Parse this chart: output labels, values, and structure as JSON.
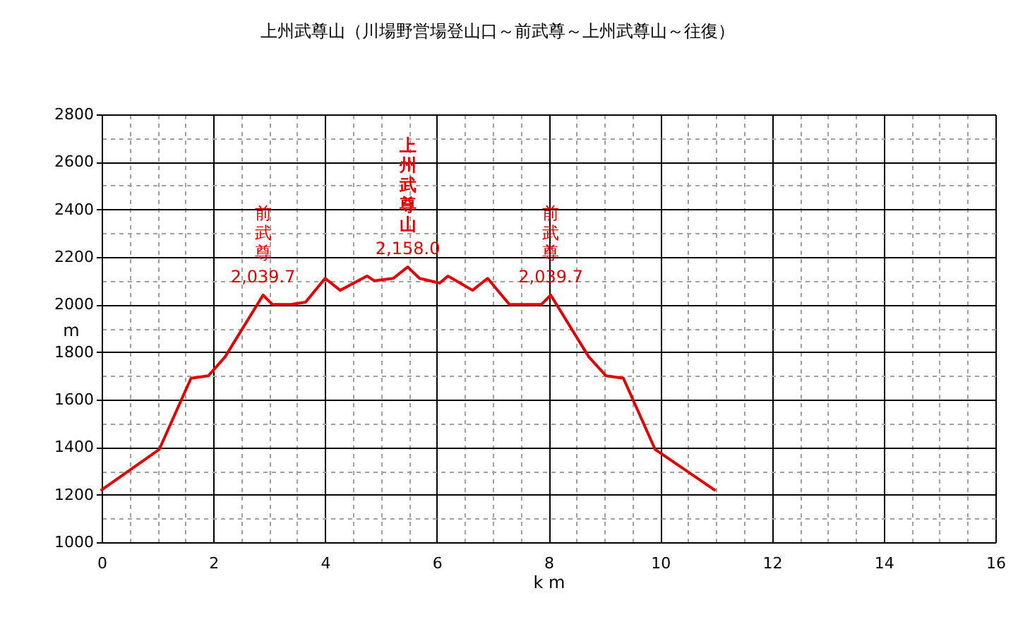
{
  "chart_data": {
    "type": "line",
    "title": "上州武尊山（川場野営場登山口～前武尊～上州武尊山～往復）",
    "xlabel": "k m",
    "ylabel": "m",
    "x": [
      0,
      1.03,
      1.6,
      1.91,
      2.21,
      2.89,
      3.06,
      3.39,
      3.65,
      4.0,
      4.27,
      4.75,
      4.88,
      5.22,
      5.48,
      5.69,
      6.05,
      6.2,
      6.64,
      6.91,
      7.3,
      7.57,
      7.87,
      8.04,
      8.72,
      9.03,
      9.34,
      9.91,
      10.97
    ],
    "values": [
      1220,
      1390,
      1690,
      1700,
      1780,
      2039.7,
      2000,
      2000,
      2010,
      2110,
      2060,
      2120,
      2100,
      2110,
      2158.0,
      2110,
      2090,
      2120,
      2060,
      2110,
      2000,
      2000,
      2000,
      2039.7,
      1780,
      1700,
      1690,
      1390,
      1220
    ],
    "value_labels": [
      null,
      null,
      null,
      null,
      null,
      "2,039.7",
      null,
      null,
      null,
      null,
      null,
      null,
      null,
      null,
      "2,158.0",
      null,
      null,
      null,
      null,
      null,
      null,
      null,
      null,
      "2,039.7",
      null,
      null,
      null,
      null,
      null
    ],
    "color": "#e00000",
    "annotations": [
      {
        "text": "前武尊",
        "x": 2.89,
        "y": 2039.7
      },
      {
        "text": "上州武尊山",
        "x": 5.48,
        "y": 2158.0
      },
      {
        "text": "前武尊",
        "x": 8.04,
        "y": 2039.7
      }
    ],
    "xlim": [
      0,
      16
    ],
    "ylim": [
      1000,
      2800
    ],
    "xticks": [
      0,
      {
        "value": 0.5,
        "label": null
      },
      {
        "value": 1,
        "label": null
      },
      {
        "value": 1.5,
        "label": null
      },
      2,
      {
        "value": 2.5,
        "label": null
      },
      {
        "value": 3,
        "label": null
      },
      {
        "value": 3.5,
        "label": null
      },
      4,
      {
        "value": 4.5,
        "label": null
      },
      {
        "value": 5,
        "label": null
      },
      {
        "value": 5.5,
        "label": null
      },
      6,
      {
        "value": 6.5,
        "label": null
      },
      {
        "value": 7,
        "label": null
      },
      {
        "value": 7.5,
        "label": null
      },
      8,
      {
        "value": 8.5,
        "label": null
      },
      {
        "value": 9,
        "label": null
      },
      {
        "value": 9.5,
        "label": null
      },
      10,
      {
        "value": 10.5,
        "label": null
      },
      {
        "value": 11,
        "label": null
      },
      {
        "value": 11.5,
        "label": null
      },
      12,
      {
        "value": 12.5,
        "label": null
      },
      {
        "value": 13,
        "label": null
      },
      {
        "value": 13.5,
        "label": null
      },
      14,
      {
        "value": 14.5,
        "label": null
      },
      {
        "value": 15,
        "label": null
      },
      {
        "value": 15.5,
        "label": null
      },
      16
    ],
    "yticks": [
      1000,
      {
        "value": 1100,
        "label": null
      },
      1200,
      {
        "value": 1300,
        "label": null
      },
      1400,
      {
        "value": 1500,
        "label": null
      },
      1600,
      {
        "value": 1700,
        "label": null
      },
      1800,
      {
        "value": 1900,
        "label": null
      },
      2000,
      {
        "value": 2100,
        "label": null
      },
      2200,
      {
        "value": 2300,
        "label": null
      },
      2400,
      {
        "value": 2500,
        "label": null
      },
      2600,
      {
        "value": 2700,
        "label": null
      },
      2800
    ],
    "grid": true
  }
}
